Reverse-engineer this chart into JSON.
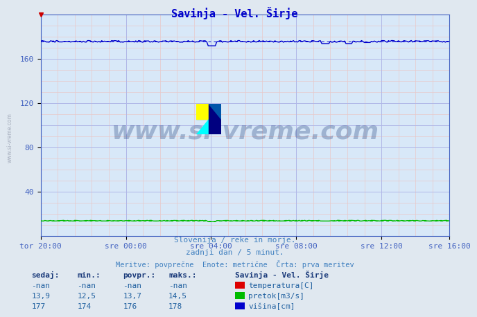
{
  "title": "Savinja - Vel. Širje",
  "bg_color": "#e0e8f0",
  "plot_bg_color": "#d8e8f8",
  "grid_color_major": "#b0b8e8",
  "grid_color_minor": "#e8c8c8",
  "xlim": [
    0,
    288
  ],
  "ylim": [
    0,
    200
  ],
  "xtick_positions": [
    0,
    60,
    120,
    180,
    240,
    288
  ],
  "xtick_labels": [
    "tor 20:00",
    "sre 00:00",
    "sre 04:00",
    "sre 08:00",
    "sre 12:00",
    "sre 16:00"
  ],
  "ytick_vals": [
    40,
    80,
    120,
    160
  ],
  "watermark_text": "www.si-vreme.com",
  "watermark_color": "#1a3a7a",
  "watermark_alpha": 0.3,
  "subtitle1": "Slovenija / reke in morje.",
  "subtitle2": "zadnji dan / 5 minut.",
  "subtitle3": "Meritve: povprečne  Enote: metrične  Črta: prva meritev",
  "subtitle_color": "#4080c0",
  "legend_title": "Savinja - Vel. Širje",
  "legend_color": "#1a3a7a",
  "table_headers": [
    "sedaj:",
    "min.:",
    "povpr.:",
    "maks.:"
  ],
  "table_data": [
    [
      "-nan",
      "-nan",
      "-nan",
      "-nan"
    ],
    [
      "13,9",
      "12,5",
      "13,7",
      "14,5"
    ],
    [
      "177",
      "174",
      "176",
      "178"
    ]
  ],
  "series_names": [
    "temperatura[C]",
    "pretok[m3/s]",
    "višina[cm]"
  ],
  "series_colors": [
    "#dd0000",
    "#00bb00",
    "#0000cc"
  ],
  "visina_base": 176,
  "pretok_base": 13.7,
  "n_points": 289,
  "arrow_color": "#cc0000",
  "title_color": "#0000cc",
  "title_fontsize": 11,
  "axis_color": "#4060c0",
  "tick_color": "#4060c0",
  "tick_fontsize": 8,
  "left_watermark": "www.si-vreme.com",
  "left_watermark_color": "#a0a8b8"
}
